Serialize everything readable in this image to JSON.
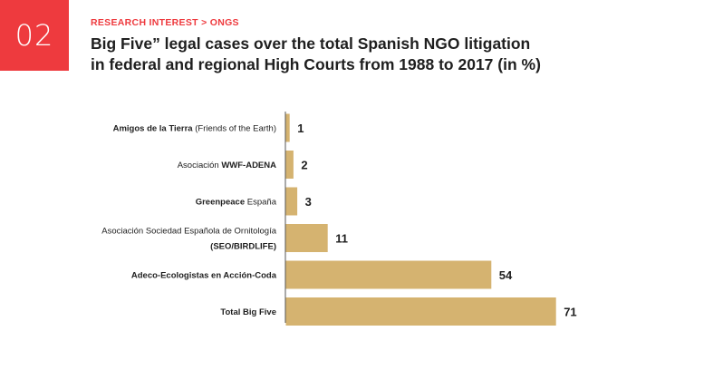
{
  "badge": {
    "number": "02"
  },
  "header": {
    "breadcrumb_section": "RESEARCH INTEREST > ",
    "breadcrumb_current": "ONGS",
    "title_line1": "Big Five” legal cases over the total Spanish NGO litigation",
    "title_line2": "in federal and regional High Courts from 1988 to 2017 (in %)"
  },
  "colors": {
    "accent": "#ee3a3e",
    "bar": "#d5b370",
    "axis": "#555555",
    "text": "#1f1f1f"
  },
  "chart_data": {
    "type": "bar",
    "orientation": "horizontal",
    "title": "Big Five” legal cases over the total Spanish NGO litigation in federal and regional High Courts from 1988 to 2017 (in %)",
    "xlim": [
      0,
      100
    ],
    "grid": false,
    "categories": [
      {
        "lines": [
          [
            {
              "t": "Amigos de la Tierra",
              "b": true
            },
            {
              "t": " (Friends of the Earth)",
              "b": false
            }
          ]
        ]
      },
      {
        "lines": [
          [
            {
              "t": "Asociación ",
              "b": false
            },
            {
              "t": "WWF-ADENA",
              "b": true
            }
          ]
        ]
      },
      {
        "lines": [
          [
            {
              "t": "Greenpeace",
              "b": true
            },
            {
              "t": " España",
              "b": false
            }
          ]
        ]
      },
      {
        "lines": [
          [
            {
              "t": "Asociación Sociedad Española de Ornitología",
              "b": false
            }
          ],
          [
            {
              "t": "(SEO/BIRDLIFE)",
              "b": true
            }
          ]
        ]
      },
      {
        "lines": [
          [
            {
              "t": "Adeco-Ecologistas en Acción-Coda",
              "b": true
            }
          ]
        ]
      },
      {
        "lines": [
          [
            {
              "t": "Total Big Five",
              "b": true
            }
          ]
        ]
      }
    ],
    "values": [
      1,
      2,
      3,
      11,
      54,
      71
    ],
    "value_labels": [
      "1",
      "2",
      "3",
      "11",
      "54",
      "71"
    ]
  }
}
